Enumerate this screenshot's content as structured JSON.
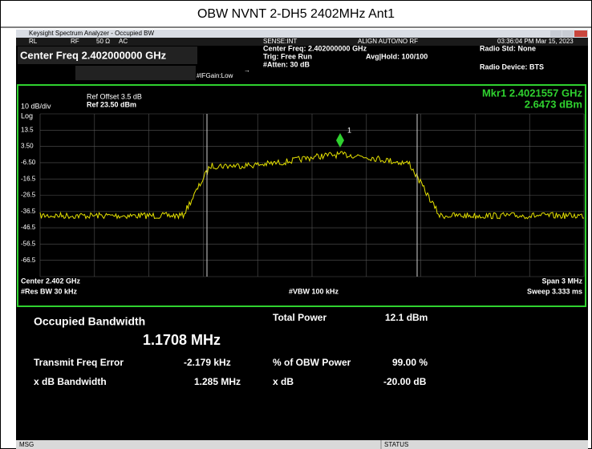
{
  "title": "OBW NVNT 2-DH5 2402MHz Ant1",
  "window": {
    "title": "Keysight Spectrum Analyzer - Occupied BW"
  },
  "toolbar": {
    "rl": "RL",
    "rf": "RF",
    "impedance": "50 Ω",
    "coupling": "AC",
    "sense": "SENSE:INT",
    "align": "ALIGN AUTO/NO RF",
    "time": "03:36:04 PM Mar 15, 2023"
  },
  "header": {
    "center_freq_big": "Center Freq 2.402000000 GHz",
    "center_freq": "Center Freq: 2.402000000 GHz",
    "trig": "Trig: Free Run",
    "avg_hold": "Avg|Hold: 100/100",
    "atten": "#Atten: 30 dB",
    "ifgain": "#IFGain:Low",
    "radio_std": "Radio Std: None",
    "radio_device": "Radio Device: BTS"
  },
  "plot": {
    "ref_offset": "Ref Offset 3.5 dB",
    "ref_level": "Ref 23.50 dBm",
    "scale": "10 dB/div",
    "log": "Log",
    "y_labels": [
      "13.5",
      "3.50",
      "-6.50",
      "-16.5",
      "-26.5",
      "-36.5",
      "-46.5",
      "-56.5",
      "-66.5"
    ],
    "marker_label": "Mkr1  2.4021557 GHz",
    "marker_value": "2.6473 dBm",
    "marker_id": "1",
    "center": "Center  2.402 GHz",
    "res_bw": "#Res BW  30 kHz",
    "vbw": "#VBW  100 kHz",
    "span": "Span 3 MHz",
    "sweep": "Sweep  3.333 ms"
  },
  "results": {
    "occupied_bw_label": "Occupied Bandwidth",
    "occupied_bw_value": "1.1708 MHz",
    "total_power_label": "Total Power",
    "total_power_value": "12.1 dBm",
    "freq_error_label": "Transmit Freq Error",
    "freq_error_value": "-2.179 kHz",
    "obw_power_label": "% of OBW Power",
    "obw_power_value": "99.00 %",
    "xdb_bw_label": "x dB Bandwidth",
    "xdb_bw_value": "1.285 MHz",
    "xdb_label": "x dB",
    "xdb_value": "-20.00 dB"
  },
  "status": {
    "msg": "MSG",
    "status": "STATUS"
  }
}
